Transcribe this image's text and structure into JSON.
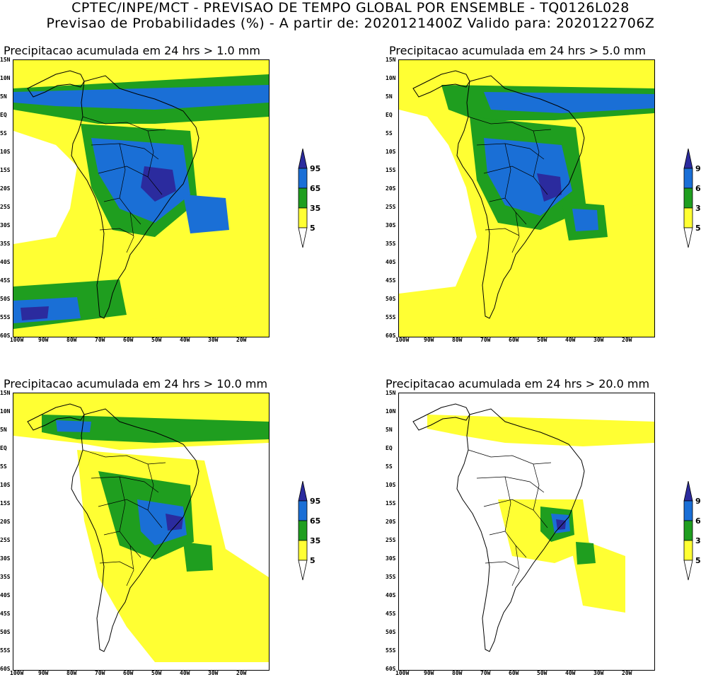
{
  "header": {
    "line1": "CPTEC/INPE/MCT - PREVISAO DE TEMPO GLOBAL POR ENSEMBLE - TQ0126L028",
    "line2": "Previsao de Probabilidades (%) -  A partir de: 2020121400Z  Valido para: 2020122706Z"
  },
  "axes": {
    "lat_labels": [
      "15N",
      "10N",
      "5N",
      "EQ",
      "5S",
      "10S",
      "15S",
      "20S",
      "25S",
      "30S",
      "35S",
      "40S",
      "45S",
      "50S",
      "55S",
      "60S"
    ],
    "lon_labels": [
      "100W",
      "90W",
      "80W",
      "70W",
      "60W",
      "50W",
      "40W",
      "30W",
      "20W"
    ]
  },
  "legend": {
    "levels": [
      "95",
      "65",
      "35",
      "5"
    ],
    "colors": {
      "p95": "#2b2b9e",
      "p65": "#1a6fd6",
      "p35": "#1f9e1f",
      "p5": "#ffff33",
      "land_lines": "#000000"
    }
  },
  "panels": [
    {
      "title": "Precipitacao acumulada em 24 hrs > 1.0 mm"
    },
    {
      "title": "Precipitacao acumulada em 24 hrs > 5.0 mm"
    },
    {
      "title": "Precipitacao acumulada em 24 hrs > 10.0 mm"
    },
    {
      "title": "Precipitacao acumulada em 24 hrs > 20.0 mm"
    }
  ]
}
